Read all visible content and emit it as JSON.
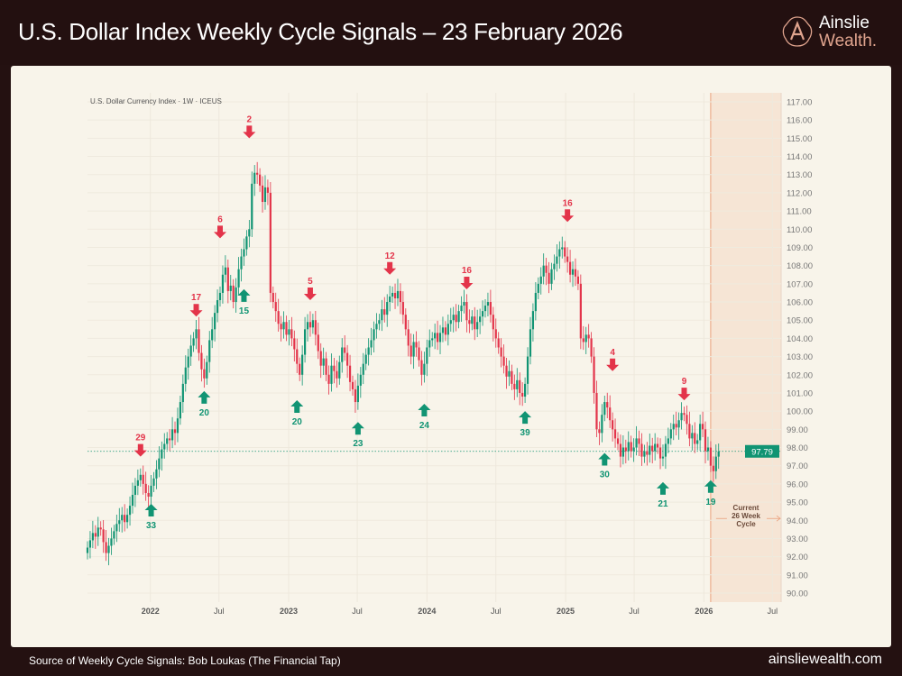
{
  "header": {
    "title": "U.S. Dollar Index Weekly Cycle Signals – 23 February 2026",
    "logo_line1": "Ainslie",
    "logo_line2": "Wealth",
    "logo_dot": "."
  },
  "footer": {
    "source": "Source of Weekly Cycle Signals: Bob Loukas (The Financial Tap)",
    "site": "ainsliewealth.com"
  },
  "colors": {
    "up": "#119473",
    "down": "#e3344a",
    "shade": "#f6e5d5",
    "cycle_line": "#eaa07d",
    "header_bg": "#231010",
    "card_bg": "#f8f4ea"
  },
  "chart_data": {
    "type": "candlestick",
    "title": "U.S. Dollar Currency Index · 1W · ICEUS",
    "interval": "1W",
    "x_start": "2021-07-19",
    "ylim": [
      89.5,
      117.5
    ],
    "y_ticks": [
      "90.00",
      "91.00",
      "92.00",
      "93.00",
      "94.00",
      "95.00",
      "96.00",
      "97.00",
      "98.00",
      "99.00",
      "100.00",
      "101.00",
      "102.00",
      "103.00",
      "104.00",
      "105.00",
      "106.00",
      "107.00",
      "108.00",
      "109.00",
      "110.00",
      "111.00",
      "112.00",
      "113.00",
      "114.00",
      "115.00",
      "116.00",
      "117.00"
    ],
    "x_ticks": [
      {
        "label": "2022",
        "date": "2022-01-01"
      },
      {
        "label": "Jul",
        "date": "2022-07-01"
      },
      {
        "label": "2023",
        "date": "2023-01-01"
      },
      {
        "label": "Jul",
        "date": "2023-07-01"
      },
      {
        "label": "2024",
        "date": "2024-01-01"
      },
      {
        "label": "Jul",
        "date": "2024-07-01"
      },
      {
        "label": "2025",
        "date": "2025-01-01"
      },
      {
        "label": "Jul",
        "date": "2025-07-01"
      },
      {
        "label": "2026",
        "date": "2026-01-01"
      },
      {
        "label": "Jul",
        "date": "2026-07-01"
      }
    ],
    "last_price": "97.79",
    "grid": true,
    "closes": [
      92.5,
      92.9,
      93.3,
      93.1,
      93.6,
      93.5,
      92.8,
      92.2,
      92.6,
      93.0,
      93.4,
      93.8,
      94.0,
      94.3,
      93.9,
      94.3,
      94.8,
      95.4,
      95.9,
      96.2,
      96.5,
      96.0,
      95.5,
      95.3,
      95.9,
      96.3,
      96.8,
      97.4,
      97.9,
      98.2,
      98.5,
      98.4,
      99.0,
      98.8,
      99.6,
      100.5,
      101.5,
      102.4,
      103.0,
      103.6,
      104.0,
      104.5,
      103.2,
      102.3,
      101.8,
      102.7,
      103.9,
      104.5,
      105.4,
      106.1,
      106.5,
      107.5,
      107.9,
      106.6,
      106.9,
      106.0,
      106.8,
      107.8,
      108.5,
      108.9,
      109.6,
      110.0,
      112.5,
      113.1,
      113.0,
      112.4,
      111.5,
      112.3,
      112.0,
      106.5,
      106.0,
      105.5,
      104.8,
      104.5,
      104.9,
      104.2,
      104.5,
      104.0,
      103.4,
      102.6,
      102.0,
      103.1,
      104.5,
      104.9,
      104.6,
      105.0,
      104.2,
      103.3,
      102.5,
      102.9,
      102.0,
      101.5,
      102.5,
      102.2,
      101.8,
      102.7,
      103.5,
      103.2,
      102.5,
      101.6,
      101.2,
      100.5,
      101.4,
      102.0,
      102.6,
      103.1,
      103.5,
      103.9,
      104.5,
      104.8,
      105.0,
      105.6,
      105.3,
      106.0,
      106.3,
      106.5,
      106.2,
      106.6,
      106.0,
      105.3,
      104.5,
      103.6,
      103.0,
      103.8,
      103.5,
      102.8,
      102.0,
      102.6,
      103.5,
      103.9,
      104.0,
      104.3,
      103.8,
      104.3,
      104.6,
      104.2,
      104.8,
      105.0,
      105.3,
      104.9,
      105.5,
      105.8,
      106.0,
      105.0,
      104.8,
      105.2,
      104.5,
      104.9,
      105.2,
      105.5,
      105.8,
      106.0,
      105.3,
      104.5,
      104.0,
      103.5,
      103.0,
      102.5,
      101.9,
      102.2,
      101.5,
      101.2,
      101.7,
      101.0,
      100.8,
      101.5,
      103.0,
      104.5,
      105.5,
      106.5,
      107.0,
      107.4,
      108.0,
      107.6,
      107.0,
      107.8,
      108.1,
      108.5,
      108.9,
      109.0,
      108.5,
      108.2,
      107.5,
      107.8,
      107.4,
      107.0,
      104.0,
      103.8,
      104.2,
      104.0,
      103.0,
      101.0,
      99.0,
      98.8,
      99.8,
      100.5,
      100.2,
      99.5,
      99.0,
      98.5,
      98.2,
      97.5,
      98.0,
      97.8,
      98.3,
      97.8,
      98.0,
      98.5,
      98.2,
      97.5,
      97.8,
      97.6,
      98.1,
      97.8,
      98.2,
      98.0,
      97.4,
      97.5,
      98.2,
      98.5,
      99.0,
      99.3,
      99.1,
      99.5,
      99.9,
      99.8,
      99.3,
      98.5,
      98.8,
      98.2,
      98.4,
      99.3,
      99.0,
      97.8,
      98.0,
      97.0,
      96.7,
      97.5,
      97.79
    ],
    "signals": [
      {
        "label": "29",
        "type": "top",
        "date": "2021-12-06",
        "level": 97.3
      },
      {
        "label": "33",
        "type": "bottom",
        "date": "2022-01-03",
        "level": 95.1
      },
      {
        "label": "17",
        "type": "top",
        "date": "2022-05-02",
        "level": 105.0
      },
      {
        "label": "20",
        "type": "bottom",
        "date": "2022-05-23",
        "level": 101.3
      },
      {
        "label": "6",
        "type": "top",
        "date": "2022-07-04",
        "level": 109.3
      },
      {
        "label": "15",
        "type": "bottom",
        "date": "2022-09-05",
        "level": 106.9
      },
      {
        "label": "2",
        "type": "top",
        "date": "2022-09-19",
        "level": 114.8
      },
      {
        "label": "20",
        "type": "bottom",
        "date": "2023-01-23",
        "level": 100.8
      },
      {
        "label": "5",
        "type": "top",
        "date": "2023-02-27",
        "level": 105.9
      },
      {
        "label": "23",
        "type": "bottom",
        "date": "2023-07-03",
        "level": 99.6
      },
      {
        "label": "12",
        "type": "top",
        "date": "2023-09-25",
        "level": 107.3
      },
      {
        "label": "24",
        "type": "bottom",
        "date": "2023-12-25",
        "level": 100.6
      },
      {
        "label": "16",
        "type": "top",
        "date": "2024-04-15",
        "level": 106.5
      },
      {
        "label": "39",
        "type": "bottom",
        "date": "2024-09-16",
        "level": 100.2
      },
      {
        "label": "16",
        "type": "top",
        "date": "2025-01-06",
        "level": 110.2
      },
      {
        "label": "30",
        "type": "bottom",
        "date": "2025-04-14",
        "level": 97.9
      },
      {
        "label": "4",
        "type": "top",
        "date": "2025-05-05",
        "level": 102.0
      },
      {
        "label": "21",
        "type": "bottom",
        "date": "2025-09-15",
        "level": 96.3
      },
      {
        "label": "9",
        "type": "top",
        "date": "2025-11-10",
        "level": 100.4
      },
      {
        "label": "19",
        "type": "bottom",
        "date": "2026-01-19",
        "level": 96.4
      }
    ],
    "cycle_region": {
      "start": "2026-01-19",
      "label_lines": [
        "Current",
        "26 Week",
        "Cycle"
      ]
    }
  }
}
